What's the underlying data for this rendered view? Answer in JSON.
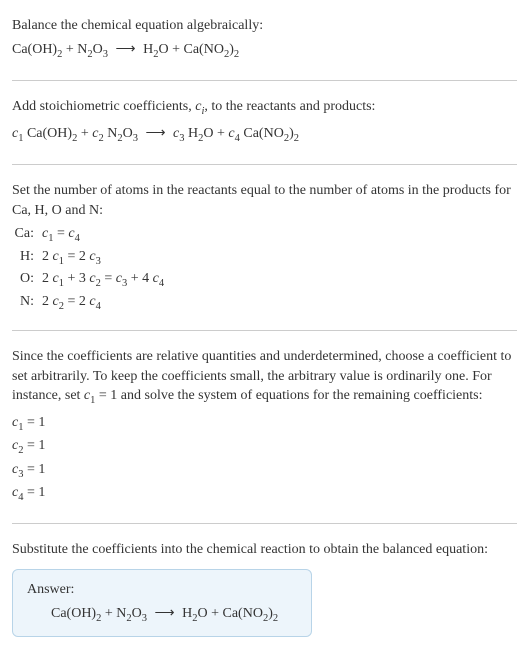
{
  "title": "Balance the chemical equation algebraically:",
  "main_equation": {
    "lhs1": "Ca(OH)",
    "lhs1_sub": "2",
    "plus1": " + ",
    "lhs2": "N",
    "lhs2_sub1": "2",
    "lhs2_mid": "O",
    "lhs2_sub2": "3",
    "arrow": " ⟶ ",
    "rhs1": "H",
    "rhs1_sub": "2",
    "rhs1_end": "O",
    "plus2": " + ",
    "rhs2": "Ca(NO",
    "rhs2_sub1": "2",
    "rhs2_mid": ")",
    "rhs2_sub2": "2"
  },
  "step2_text": "Add stoichiometric coefficients, ",
  "step2_var": "c",
  "step2_var_sub": "i",
  "step2_text2": ", to the reactants and products:",
  "coef_equation": {
    "c1": "c",
    "c1_sub": "1",
    "sp1": " ",
    "lhs1": "Ca(OH)",
    "lhs1_sub": "2",
    "plus1": " + ",
    "c2": "c",
    "c2_sub": "2",
    "sp2": " ",
    "lhs2": "N",
    "lhs2_sub1": "2",
    "lhs2_mid": "O",
    "lhs2_sub2": "3",
    "arrow": " ⟶ ",
    "c3": "c",
    "c3_sub": "3",
    "sp3": " ",
    "rhs1": "H",
    "rhs1_sub": "2",
    "rhs1_end": "O",
    "plus2": " + ",
    "c4": "c",
    "c4_sub": "4",
    "sp4": " ",
    "rhs2": "Ca(NO",
    "rhs2_sub1": "2",
    "rhs2_mid": ")",
    "rhs2_sub2": "2"
  },
  "step3_text": "Set the number of atoms in the reactants equal to the number of atoms in the products for Ca, H, O and N:",
  "atoms": {
    "ca_label": "Ca:",
    "ca_eq_c1": "c",
    "ca_eq_c1_sub": "1",
    "ca_eq_mid": " = ",
    "ca_eq_c4": "c",
    "ca_eq_c4_sub": "4",
    "h_label": "H:",
    "h_eq_pre": "2 ",
    "h_eq_c1": "c",
    "h_eq_c1_sub": "1",
    "h_eq_mid": " = 2 ",
    "h_eq_c3": "c",
    "h_eq_c3_sub": "3",
    "o_label": "O:",
    "o_eq_pre": "2 ",
    "o_eq_c1": "c",
    "o_eq_c1_sub": "1",
    "o_eq_mid1": " + 3 ",
    "o_eq_c2": "c",
    "o_eq_c2_sub": "2",
    "o_eq_mid2": " = ",
    "o_eq_c3": "c",
    "o_eq_c3_sub": "3",
    "o_eq_mid3": " + 4 ",
    "o_eq_c4": "c",
    "o_eq_c4_sub": "4",
    "n_label": "N:",
    "n_eq_pre": "2 ",
    "n_eq_c2": "c",
    "n_eq_c2_sub": "2",
    "n_eq_mid": " = 2 ",
    "n_eq_c4": "c",
    "n_eq_c4_sub": "4"
  },
  "step4_text1": "Since the coefficients are relative quantities and underdetermined, choose a coefficient to set arbitrarily. To keep the coefficients small, the arbitrary value is ordinarily one. For instance, set ",
  "step4_var": "c",
  "step4_var_sub": "1",
  "step4_text2": " = 1 and solve the system of equations for the remaining coefficients:",
  "solutions": {
    "c1_var": "c",
    "c1_sub": "1",
    "c1_val": " = 1",
    "c2_var": "c",
    "c2_sub": "2",
    "c2_val": " = 1",
    "c3_var": "c",
    "c3_sub": "3",
    "c3_val": " = 1",
    "c4_var": "c",
    "c4_sub": "4",
    "c4_val": " = 1"
  },
  "step5_text": "Substitute the coefficients into the chemical reaction to obtain the balanced equation:",
  "answer_label": "Answer:",
  "answer_eq": {
    "lhs1": "Ca(OH)",
    "lhs1_sub": "2",
    "plus1": " + ",
    "lhs2": "N",
    "lhs2_sub1": "2",
    "lhs2_mid": "O",
    "lhs2_sub2": "3",
    "arrow": " ⟶ ",
    "rhs1": "H",
    "rhs1_sub": "2",
    "rhs1_end": "O",
    "plus2": " + ",
    "rhs2": "Ca(NO",
    "rhs2_sub1": "2",
    "rhs2_mid": ")",
    "rhs2_sub2": "2"
  },
  "colors": {
    "text": "#333333",
    "hr": "#cccccc",
    "answer_bg": "#edf5fb",
    "answer_border": "#b8d4e8"
  }
}
